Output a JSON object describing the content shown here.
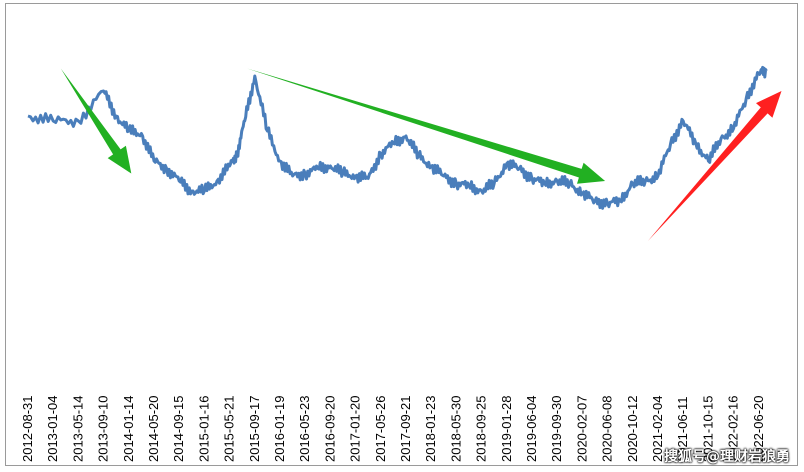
{
  "chart_data": {
    "type": "line",
    "title": "",
    "xlabel": "",
    "ylabel": "",
    "grid": false,
    "legend": "none",
    "y_axis_visible": false,
    "ylim": [
      0,
      100
    ],
    "line_color": "#4a7ebb",
    "x_tick_labels": [
      "2012-08-31",
      "2013-01-04",
      "2013-05-14",
      "2013-09-10",
      "2014-01-14",
      "2014-05-20",
      "2014-09-15",
      "2015-01-16",
      "2015-05-21",
      "2015-09-17",
      "2016-01-19",
      "2016-05-23",
      "2016-09-20",
      "2017-01-20",
      "2017-05-26",
      "2017-09-21",
      "2018-01-23",
      "2018-05-30",
      "2018-09-25",
      "2019-01-28",
      "2019-06-04",
      "2019-09-30",
      "2020-02-07",
      "2020-06-08",
      "2020-10-12",
      "2021-02-04",
      "2021-06-11",
      "2021-10-15",
      "2022-02-16",
      "2022-06-20"
    ],
    "series": [
      {
        "x": [
          0,
          1,
          2,
          3,
          3.5,
          4,
          4.5,
          5,
          5.5,
          6,
          6.5,
          7,
          7.5,
          8,
          8.3,
          8.6,
          9,
          9.5,
          10,
          10.5,
          11,
          11.5,
          12,
          12.5,
          13,
          13.5,
          14,
          14.5,
          15,
          15.5,
          16,
          16.5,
          17,
          17.5,
          18,
          18.5,
          19,
          19.5,
          20,
          20.5,
          21,
          21.5,
          22,
          22.5,
          23,
          23.5,
          24,
          24.5,
          25,
          25.5,
          26,
          26.5,
          27,
          27.5,
          28,
          28.5,
          29,
          29.3
        ],
        "values": [
          64,
          62,
          62,
          74,
          64,
          58,
          57,
          46,
          43,
          38,
          34,
          34,
          38,
          44,
          49,
          62,
          80,
          58,
          46,
          40,
          41,
          43,
          44,
          41,
          40,
          39,
          49,
          53,
          56,
          48,
          44,
          40,
          37,
          36,
          34,
          37,
          45,
          43,
          39,
          37,
          38,
          37,
          33,
          30,
          29,
          30,
          37,
          38,
          40,
          53,
          62,
          53,
          46,
          55,
          59,
          71,
          81,
          82
        ]
      }
    ],
    "annotations": [
      {
        "type": "arrow",
        "color": "#22b022",
        "from": [
          1.3,
          83
        ],
        "to": [
          4.1,
          41
        ]
      },
      {
        "type": "arrow",
        "color": "#22b022",
        "from": [
          8.7,
          83
        ],
        "to": [
          22.9,
          38
        ]
      },
      {
        "type": "arrow",
        "color": "#ff2020",
        "from": [
          24.6,
          14
        ],
        "to": [
          29.9,
          74
        ]
      }
    ]
  },
  "watermark": "搜狐号@理财岩狼勇"
}
